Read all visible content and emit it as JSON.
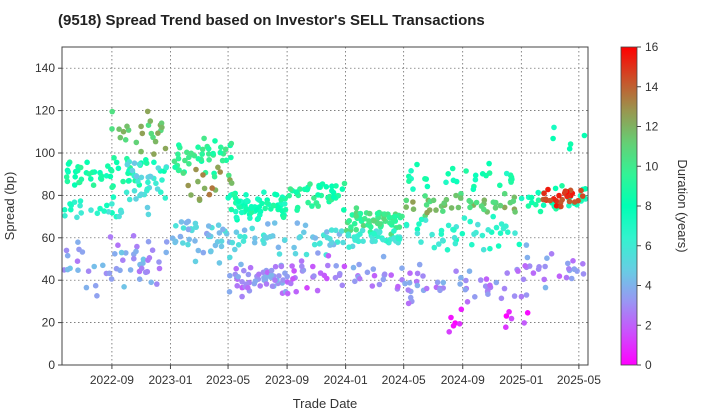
{
  "chart_data": {
    "type": "scatter",
    "title": "(9518)   Spread Trend based on Investor's SELL Transactions",
    "xlabel": "Trade Date",
    "ylabel": "Spread (bp)",
    "colorbar_label": "Duration (years)",
    "colormap": "rainbow",
    "xlim": [
      "2022-05-20",
      "2025-05-20"
    ],
    "ylim": [
      0,
      150
    ],
    "x_ticks": [
      "2022-09",
      "2023-01",
      "2023-05",
      "2023-09",
      "2024-01",
      "2024-05",
      "2024-09",
      "2025-01",
      "2025-05"
    ],
    "y_ticks": [
      0,
      20,
      40,
      60,
      80,
      100,
      120,
      140
    ],
    "colorbar_range": [
      0,
      16
    ],
    "colorbar_ticks": [
      0,
      2,
      4,
      6,
      8,
      10,
      12,
      14,
      16
    ],
    "grid": true,
    "clusters": [
      {
        "x_start": "2022-05-20",
        "x_end": "2022-12-20",
        "y_center": 90,
        "y_spread": 8,
        "duration": 8.5,
        "count": 60
      },
      {
        "x_start": "2022-05-20",
        "x_end": "2022-12-31",
        "y_center": 48,
        "y_spread": 14,
        "duration": 3.5,
        "count": 55
      },
      {
        "x_start": "2022-05-20",
        "x_end": "2022-09-30",
        "y_center": 72,
        "y_spread": 6,
        "duration": 6.5,
        "count": 25
      },
      {
        "x_start": "2022-09-01",
        "x_end": "2022-12-31",
        "y_center": 110,
        "y_spread": 12,
        "duration": 11.5,
        "count": 25
      },
      {
        "x_start": "2022-10-01",
        "x_end": "2022-12-31",
        "y_center": 85,
        "y_spread": 12,
        "duration": 5.5,
        "count": 35
      },
      {
        "x_start": "2023-01-01",
        "x_end": "2023-05-10",
        "y_center": 98,
        "y_spread": 10,
        "duration": 9.5,
        "count": 45
      },
      {
        "x_start": "2023-01-01",
        "x_end": "2023-05-10",
        "y_center": 60,
        "y_spread": 12,
        "duration": 4.5,
        "count": 45
      },
      {
        "x_start": "2023-02-01",
        "x_end": "2023-05-10",
        "y_center": 85,
        "y_spread": 10,
        "duration": 12.5,
        "count": 15
      },
      {
        "x_start": "2023-05-01",
        "x_end": "2023-08-31",
        "y_center": 75,
        "y_spread": 7,
        "duration": 8,
        "count": 75
      },
      {
        "x_start": "2023-05-01",
        "x_end": "2023-08-31",
        "y_center": 40,
        "y_spread": 8,
        "duration": 3,
        "count": 55
      },
      {
        "x_start": "2023-05-01",
        "x_end": "2023-12-31",
        "y_center": 60,
        "y_spread": 8,
        "duration": 5,
        "count": 50
      },
      {
        "x_start": "2023-09-01",
        "x_end": "2023-12-31",
        "y_center": 80,
        "y_spread": 7,
        "duration": 9,
        "count": 45
      },
      {
        "x_start": "2023-09-01",
        "x_end": "2023-12-31",
        "y_center": 42,
        "y_spread": 10,
        "duration": 2.5,
        "count": 30
      },
      {
        "x_start": "2024-01-01",
        "x_end": "2024-04-30",
        "y_center": 68,
        "y_spread": 6,
        "duration": 10,
        "count": 60
      },
      {
        "x_start": "2024-01-01",
        "x_end": "2024-04-30",
        "y_center": 60,
        "y_spread": 4,
        "duration": 6,
        "count": 40
      },
      {
        "x_start": "2024-01-01",
        "x_end": "2024-04-30",
        "y_center": 42,
        "y_spread": 8,
        "duration": 3,
        "count": 20
      },
      {
        "x_start": "2024-05-01",
        "x_end": "2024-12-31",
        "y_center": 76,
        "y_spread": 6,
        "duration": 11.5,
        "count": 45
      },
      {
        "x_start": "2024-05-01",
        "x_end": "2024-12-31",
        "y_center": 62,
        "y_spread": 8,
        "duration": 6.5,
        "count": 45
      },
      {
        "x_start": "2024-05-01",
        "x_end": "2024-12-31",
        "y_center": 38,
        "y_spread": 10,
        "duration": 3,
        "count": 45
      },
      {
        "x_start": "2024-05-01",
        "x_end": "2024-12-31",
        "y_center": 88,
        "y_spread": 6,
        "duration": 8,
        "count": 30
      },
      {
        "x_start": "2024-06-01",
        "x_end": "2025-01-31",
        "y_center": 22,
        "y_spread": 6,
        "duration": 1,
        "count": 12
      },
      {
        "x_start": "2025-01-01",
        "x_end": "2025-05-20",
        "y_center": 78,
        "y_spread": 7,
        "duration": 8,
        "count": 30
      },
      {
        "x_start": "2025-02-15",
        "x_end": "2025-05-10",
        "y_center": 80,
        "y_spread": 4,
        "duration": 15,
        "count": 28
      },
      {
        "x_start": "2025-01-01",
        "x_end": "2025-05-20",
        "y_center": 45,
        "y_spread": 12,
        "duration": 3,
        "count": 30
      },
      {
        "x_start": "2025-03-01",
        "x_end": "2025-05-20",
        "y_center": 108,
        "y_spread": 8,
        "duration": 7.5,
        "count": 6
      }
    ]
  }
}
